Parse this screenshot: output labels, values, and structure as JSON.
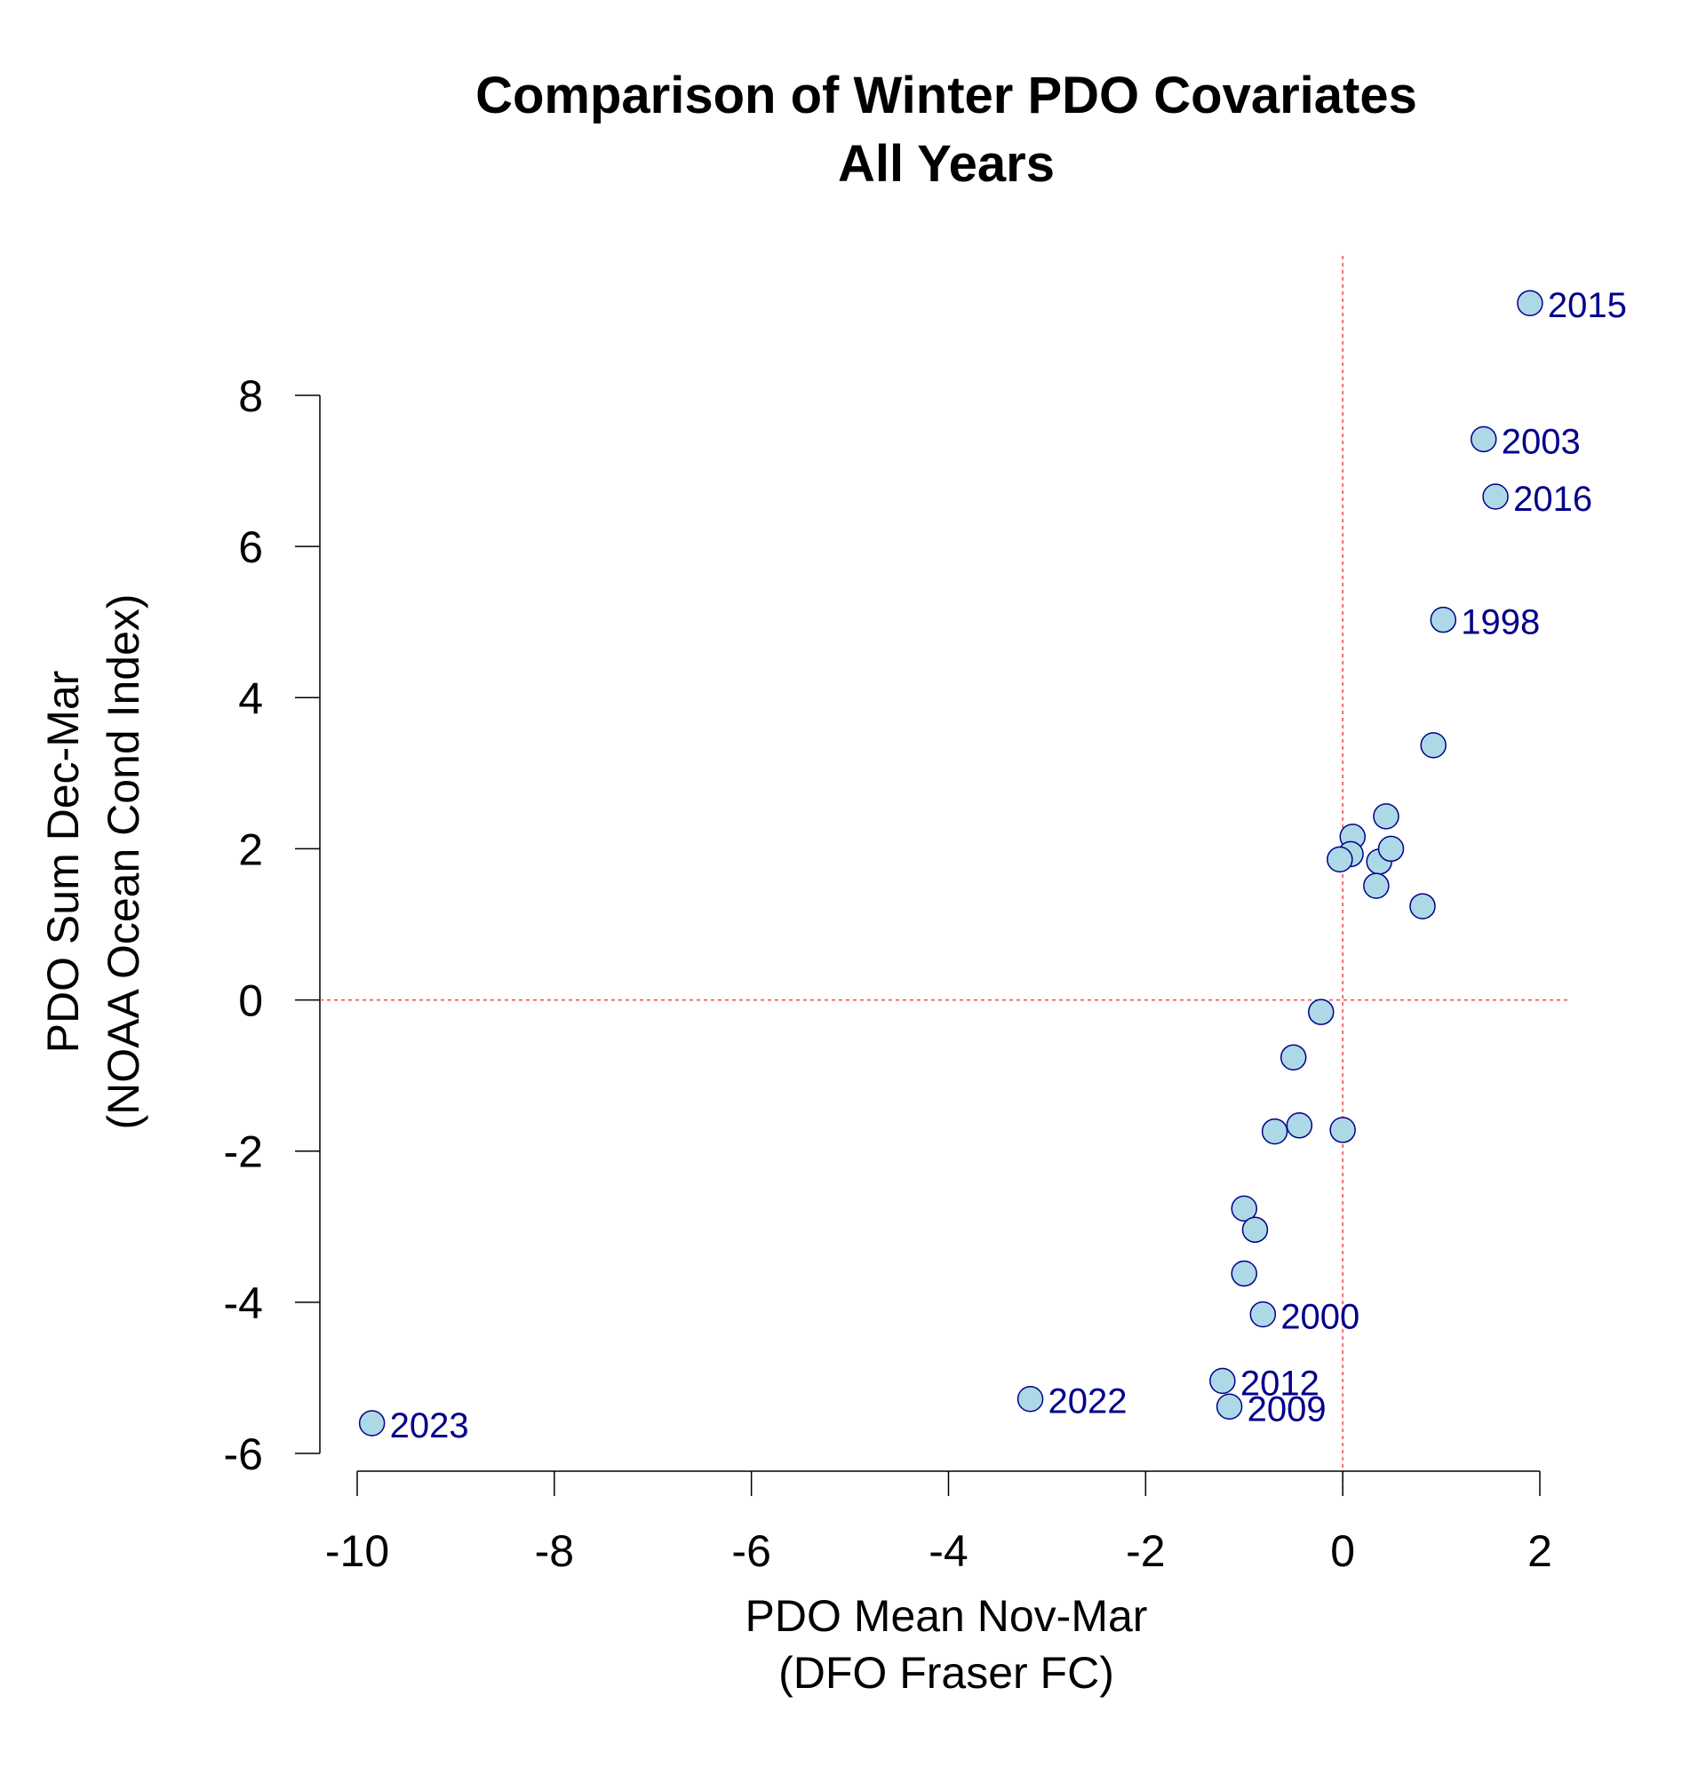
{
  "chart_data": {
    "type": "scatter",
    "title": [
      "Comparison of Winter PDO Covariates",
      "All Years"
    ],
    "xlabel": [
      "PDO Mean Nov-Mar",
      "(DFO Fraser FC)"
    ],
    "ylabel": [
      "PDO Sum Dec-Mar",
      "(NOAA Ocean Cond Index)"
    ],
    "xlim": [
      -10.1,
      2.4
    ],
    "ylim": [
      -6.2,
      9.8
    ],
    "xticks": [
      -10,
      -8,
      -6,
      -4,
      -2,
      0,
      2
    ],
    "yticks": [
      -6,
      -4,
      -2,
      0,
      2,
      4,
      6,
      8
    ],
    "xtick_labels": [
      "-10",
      "-8",
      "-6",
      "-4",
      "-2",
      "0",
      "2"
    ],
    "ytick_labels": [
      "-6",
      "-4",
      "-2",
      "0",
      "2",
      "4",
      "6",
      "8"
    ],
    "reference_lines": {
      "x": 0,
      "y": 0
    },
    "colors": {
      "point_fill": "#add8e6",
      "point_stroke": "#00008b",
      "label": "#00008b",
      "ref_line": "#ff4040"
    },
    "points": [
      {
        "x": 1.9,
        "y": 9.22,
        "label": "2015"
      },
      {
        "x": 1.43,
        "y": 7.42,
        "label": "2003"
      },
      {
        "x": 1.55,
        "y": 6.66,
        "label": "2016"
      },
      {
        "x": 1.02,
        "y": 5.03,
        "label": "1998"
      },
      {
        "x": 0.92,
        "y": 3.37,
        "label": ""
      },
      {
        "x": 0.44,
        "y": 2.43,
        "label": ""
      },
      {
        "x": 0.1,
        "y": 2.16,
        "label": ""
      },
      {
        "x": 0.08,
        "y": 1.93,
        "label": ""
      },
      {
        "x": -0.03,
        "y": 1.86,
        "label": ""
      },
      {
        "x": 0.37,
        "y": 1.83,
        "label": ""
      },
      {
        "x": 0.49,
        "y": 2.0,
        "label": ""
      },
      {
        "x": 0.34,
        "y": 1.51,
        "label": ""
      },
      {
        "x": 0.81,
        "y": 1.24,
        "label": ""
      },
      {
        "x": -0.22,
        "y": -0.16,
        "label": ""
      },
      {
        "x": -0.5,
        "y": -0.76,
        "label": ""
      },
      {
        "x": -0.44,
        "y": -1.66,
        "label": ""
      },
      {
        "x": -0.69,
        "y": -1.74,
        "label": ""
      },
      {
        "x": 0.0,
        "y": -1.72,
        "label": ""
      },
      {
        "x": -1.0,
        "y": -2.76,
        "label": ""
      },
      {
        "x": -0.89,
        "y": -3.04,
        "label": ""
      },
      {
        "x": -1.0,
        "y": -3.62,
        "label": ""
      },
      {
        "x": -0.81,
        "y": -4.16,
        "label": "2000"
      },
      {
        "x": -1.22,
        "y": -5.04,
        "label": "2012"
      },
      {
        "x": -1.15,
        "y": -5.38,
        "label": "2009"
      },
      {
        "x": -3.17,
        "y": -5.28,
        "label": "2022"
      },
      {
        "x": -9.85,
        "y": -5.6,
        "label": "2023"
      }
    ]
  }
}
